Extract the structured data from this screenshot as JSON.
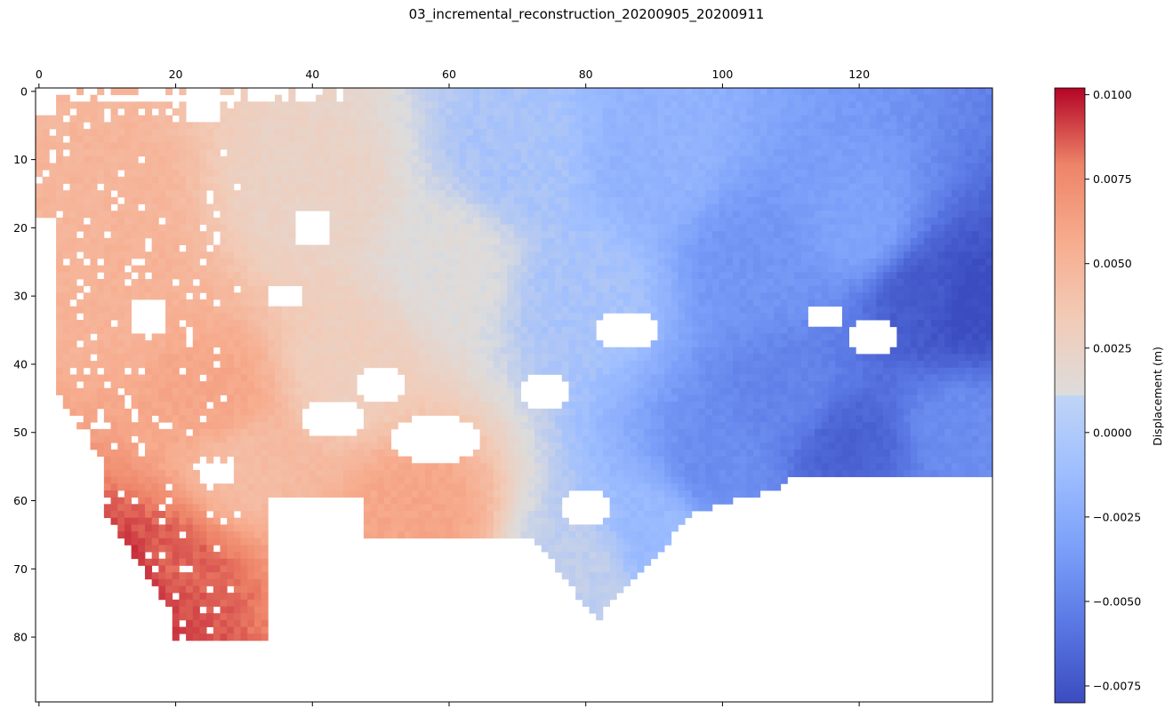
{
  "chart_data": {
    "type": "heatmap",
    "title": "03_incremental_reconstruction_20200905_20200911",
    "x_axis": {
      "position": "top",
      "range": [
        0,
        139
      ],
      "ticks": [
        0,
        20,
        40,
        60,
        80,
        100,
        120
      ]
    },
    "y_axis": {
      "inverted": true,
      "range": [
        0,
        89
      ],
      "ticks": [
        0,
        10,
        20,
        30,
        40,
        50,
        60,
        70,
        80
      ]
    },
    "colorbar": {
      "label": "Displacement (m)",
      "colormap": "coolwarm",
      "range": [
        -0.008,
        0.0102
      ],
      "tick_values": [
        0.01,
        0.0075,
        0.005,
        0.0025,
        0.0,
        -0.0025,
        -0.005,
        -0.0075
      ],
      "tick_labels": [
        "0.0100",
        "0.0075",
        "0.0050",
        "0.0025",
        "0.0000",
        "−0.0025",
        "−0.0050",
        "−0.0075"
      ]
    },
    "field_description": {
      "anchors": [
        {
          "x": 14,
          "y": 73,
          "value": 0.0098
        },
        {
          "x": 20,
          "y": 70,
          "value": 0.0085
        },
        {
          "x": 12,
          "y": 76,
          "value": 0.009
        },
        {
          "x": 8,
          "y": 15,
          "value": 0.005
        },
        {
          "x": 12,
          "y": 30,
          "value": 0.0052
        },
        {
          "x": 25,
          "y": 45,
          "value": 0.006
        },
        {
          "x": 30,
          "y": 55,
          "value": 0.0045
        },
        {
          "x": 55,
          "y": 62,
          "value": 0.006
        },
        {
          "x": 45,
          "y": 40,
          "value": 0.003
        },
        {
          "x": 40,
          "y": 15,
          "value": 0.0025
        },
        {
          "x": 60,
          "y": 25,
          "value": 0.0012
        },
        {
          "x": 70,
          "y": 10,
          "value": -0.0008
        },
        {
          "x": 80,
          "y": 30,
          "value": -0.0008
        },
        {
          "x": 80,
          "y": 70,
          "value": 0.0
        },
        {
          "x": 90,
          "y": 65,
          "value": -0.0015
        },
        {
          "x": 90,
          "y": 10,
          "value": -0.002
        },
        {
          "x": 105,
          "y": 25,
          "value": -0.004
        },
        {
          "x": 120,
          "y": 20,
          "value": -0.0032
        },
        {
          "x": 130,
          "y": 30,
          "value": -0.0072
        },
        {
          "x": 136,
          "y": 31,
          "value": -0.008
        },
        {
          "x": 118,
          "y": 52,
          "value": -0.0068
        },
        {
          "x": 110,
          "y": 45,
          "value": -0.005
        },
        {
          "x": 100,
          "y": 55,
          "value": -0.0045
        },
        {
          "x": 135,
          "y": 50,
          "value": -0.0045
        }
      ]
    }
  }
}
